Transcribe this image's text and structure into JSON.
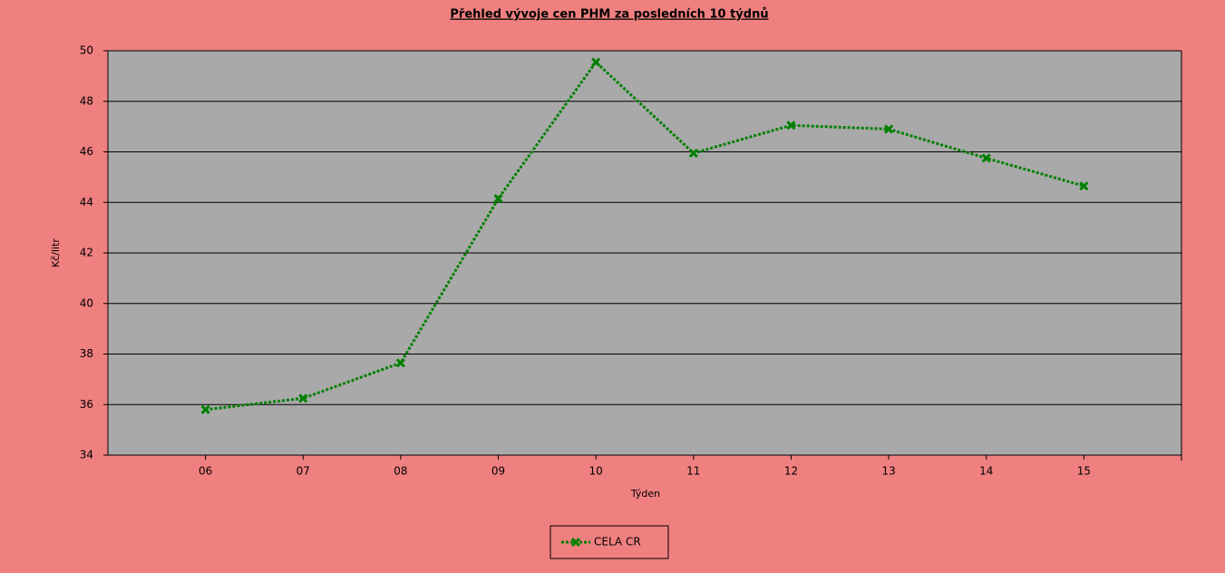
{
  "chart_data": {
    "type": "line",
    "title": "Přehled vývoje cen PHM za posledních 10 týdnů",
    "x_label": "Týden",
    "y_label": "Kč/litr",
    "categories": [
      "06",
      "07",
      "08",
      "09",
      "10",
      "11",
      "12",
      "13",
      "14",
      "15"
    ],
    "series": [
      {
        "name": "CELA CR",
        "color": "#008000",
        "values": [
          35.8,
          36.25,
          37.65,
          44.15,
          49.55,
          45.95,
          47.05,
          46.9,
          45.75,
          44.65
        ]
      }
    ],
    "ylim": [
      34,
      50
    ],
    "yticks": [
      34,
      36,
      38,
      40,
      42,
      44,
      46,
      48,
      50
    ],
    "grid": true
  }
}
